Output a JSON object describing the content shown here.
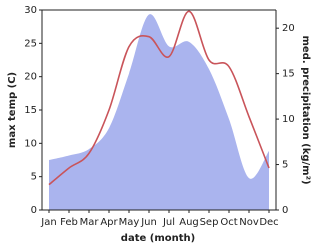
{
  "chart_data": {
    "type": "line_area",
    "categories": [
      "Jan",
      "Feb",
      "Mar",
      "Apr",
      "May",
      "Jun",
      "Jul",
      "Aug",
      "Sep",
      "Oct",
      "Nov",
      "Dec"
    ],
    "x_label": "date (month)",
    "y_label": "max temp (C)",
    "y2_label": "med. precipitation (kg/m²)",
    "ylim": [
      0,
      30
    ],
    "yticks": [
      0,
      5,
      10,
      15,
      20,
      25,
      30
    ],
    "y2lim": [
      0,
      22
    ],
    "y2ticks": [
      0,
      5,
      10,
      15,
      20
    ],
    "series": [
      {
        "name": "med. precipitation",
        "axis": "y2",
        "kind": "area",
        "color": "#aab4ee",
        "values": [
          5.5,
          6,
          6.7,
          9,
          15,
          21.5,
          18,
          18.5,
          15.5,
          10,
          3.5,
          6.5
        ]
      },
      {
        "name": "max temp",
        "axis": "y",
        "kind": "line",
        "color": "#c9545a",
        "values": [
          3.8,
          6.3,
          8.5,
          15,
          24.5,
          26,
          23,
          29.8,
          22.5,
          21.5,
          14,
          6.3
        ]
      }
    ]
  }
}
